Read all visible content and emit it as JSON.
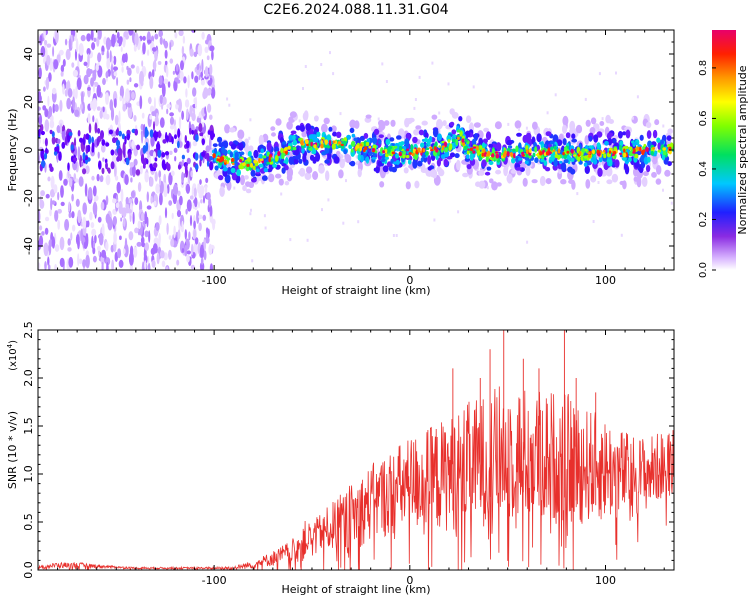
{
  "title": "C2E6.2024.088.11.31.G04",
  "chart_data": [
    {
      "type": "heatmap",
      "title": "C2E6.2024.088.11.31.G04",
      "xlabel": "Height of straight line (km)",
      "ylabel": "Frequency (Hz)",
      "xlim": [
        -190,
        135
      ],
      "ylim": [
        -50,
        50
      ],
      "xticks": [
        -100,
        0,
        100
      ],
      "yticks": [
        -40,
        -20,
        0,
        20,
        40
      ],
      "xtick_labels": [
        "-100",
        "0",
        "100"
      ],
      "ytick_labels": [
        "-40",
        "-20",
        "0",
        "20",
        "40"
      ],
      "noise_region_x": [
        -190,
        -100
      ],
      "ridge": {
        "name": "Doppler frequency track",
        "x": [
          -100,
          -90,
          -80,
          -70,
          -60,
          -55,
          -50,
          -40,
          -30,
          -20,
          -10,
          0,
          10,
          20,
          25,
          30,
          40,
          50,
          60,
          70,
          80,
          90,
          100,
          110,
          120,
          130
        ],
        "y": [
          -3,
          -5,
          -6,
          -3,
          1,
          3,
          2,
          3,
          2,
          0,
          -1,
          -1,
          0,
          2,
          6,
          1,
          -2,
          -2,
          -1,
          -1,
          -1,
          -2,
          -1,
          -1,
          0,
          0
        ]
      },
      "colorbar": {
        "label": "Normalized spectral amplitude",
        "range": [
          0,
          0.95
        ],
        "ticks": [
          0.0,
          0.2,
          0.4,
          0.6,
          0.8
        ],
        "tick_labels": [
          "0.0",
          "0.2",
          "0.4",
          "0.6",
          "0.8"
        ]
      }
    },
    {
      "type": "line",
      "xlabel": "Height of straight line (km)",
      "ylabel": "SNR (10 * v/v)",
      "ylabel_scale": "(x10",
      "ylabel_scale_exp": "4",
      "ylabel_scale_close": ")",
      "xlim": [
        -190,
        135
      ],
      "ylim": [
        0,
        2.5
      ],
      "xticks": [
        -100,
        0,
        100
      ],
      "yticks": [
        0.0,
        0.5,
        1.0,
        1.5,
        2.0,
        2.5
      ],
      "xtick_labels": [
        "-100",
        "0",
        "100"
      ],
      "ytick_labels": [
        "0.0",
        "0.5",
        "1.0",
        "1.5",
        "2.0",
        "2.5"
      ],
      "color": "#e8302c",
      "series": [
        {
          "name": "SNR envelope",
          "x": [
            -190,
            -180,
            -170,
            -160,
            -150,
            -140,
            -130,
            -120,
            -110,
            -100,
            -90,
            -80,
            -70,
            -60,
            -55,
            -50,
            -40,
            -30,
            -20,
            -10,
            0,
            10,
            20,
            30,
            40,
            50,
            60,
            70,
            80,
            90,
            100,
            110,
            120,
            130,
            135
          ],
          "values": [
            0.03,
            0.05,
            0.05,
            0.04,
            0.03,
            0.02,
            0.02,
            0.02,
            0.02,
            0.02,
            0.02,
            0.06,
            0.12,
            0.2,
            0.3,
            0.35,
            0.45,
            0.55,
            0.7,
            0.8,
            0.9,
            0.95,
            1.0,
            1.1,
            1.15,
            1.25,
            1.2,
            1.2,
            1.15,
            1.1,
            1.05,
            1.0,
            1.0,
            1.1,
            1.2
          ],
          "spread": [
            0.01,
            0.03,
            0.03,
            0.02,
            0.01,
            0.01,
            0.01,
            0.01,
            0.01,
            0.01,
            0.02,
            0.04,
            0.08,
            0.12,
            0.22,
            0.15,
            0.25,
            0.35,
            0.4,
            0.45,
            0.5,
            0.55,
            0.6,
            0.65,
            0.7,
            0.75,
            0.7,
            0.7,
            0.7,
            0.6,
            0.55,
            0.45,
            0.4,
            0.35,
            0.3
          ],
          "peaks": [
            {
              "x": 22,
              "y": 2.1
            },
            {
              "x": 36,
              "y": 2.0
            },
            {
              "x": 41,
              "y": 2.3
            },
            {
              "x": 48,
              "y": 2.5
            },
            {
              "x": 58,
              "y": 2.2
            },
            {
              "x": 66,
              "y": 2.1
            },
            {
              "x": 79,
              "y": 2.5
            },
            {
              "x": 85,
              "y": 2.0
            },
            {
              "x": 95,
              "y": 1.85
            }
          ]
        }
      ]
    }
  ]
}
